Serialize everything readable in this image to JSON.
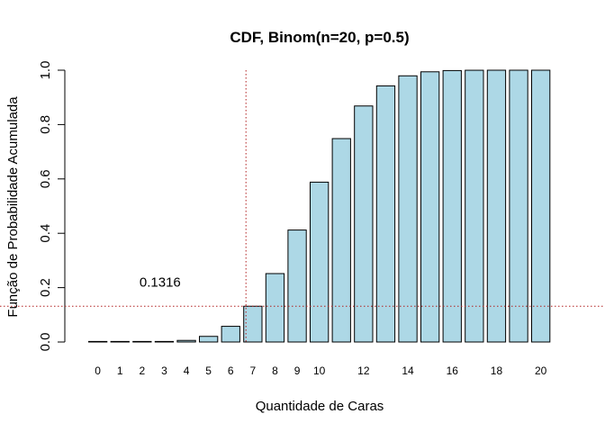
{
  "chart_data": {
    "type": "bar",
    "title": "CDF, Binom(n=20, p=0.5)",
    "xlabel": "Quantidade de Caras",
    "ylabel": "Função de Probabilidade Acumulada",
    "categories": [
      "0",
      "1",
      "2",
      "3",
      "4",
      "5",
      "6",
      "7",
      "8",
      "9",
      "10",
      "11",
      "12",
      "13",
      "14",
      "15",
      "16",
      "17",
      "18",
      "19",
      "20"
    ],
    "x_tick_labels": [
      "0",
      "1",
      "2",
      "3",
      "4",
      "5",
      "6",
      "7",
      "8",
      "9",
      "10",
      "",
      "12",
      "",
      "14",
      "",
      "16",
      "",
      "18",
      "",
      "20"
    ],
    "values": [
      1e-06,
      2e-05,
      0.0002,
      0.0013,
      0.0059,
      0.0207,
      0.0577,
      0.1316,
      0.2517,
      0.4119,
      0.5881,
      0.7483,
      0.8684,
      0.9423,
      0.9793,
      0.9941,
      0.9987,
      0.9998,
      0.99998,
      0.999999,
      1.0
    ],
    "ylim": [
      0,
      1
    ],
    "y_ticks": [
      "0.0",
      "0.2",
      "0.4",
      "0.6",
      "0.8",
      "1.0"
    ],
    "bar_color": "#add8e6",
    "bar_border_color": "#000000",
    "reference_line_color": "#b22222",
    "hline_value": 0.1316,
    "vline_category": "7",
    "annotation": {
      "text": "0.1316",
      "x_category": "2",
      "y_value": 0.22
    },
    "grid": false
  }
}
